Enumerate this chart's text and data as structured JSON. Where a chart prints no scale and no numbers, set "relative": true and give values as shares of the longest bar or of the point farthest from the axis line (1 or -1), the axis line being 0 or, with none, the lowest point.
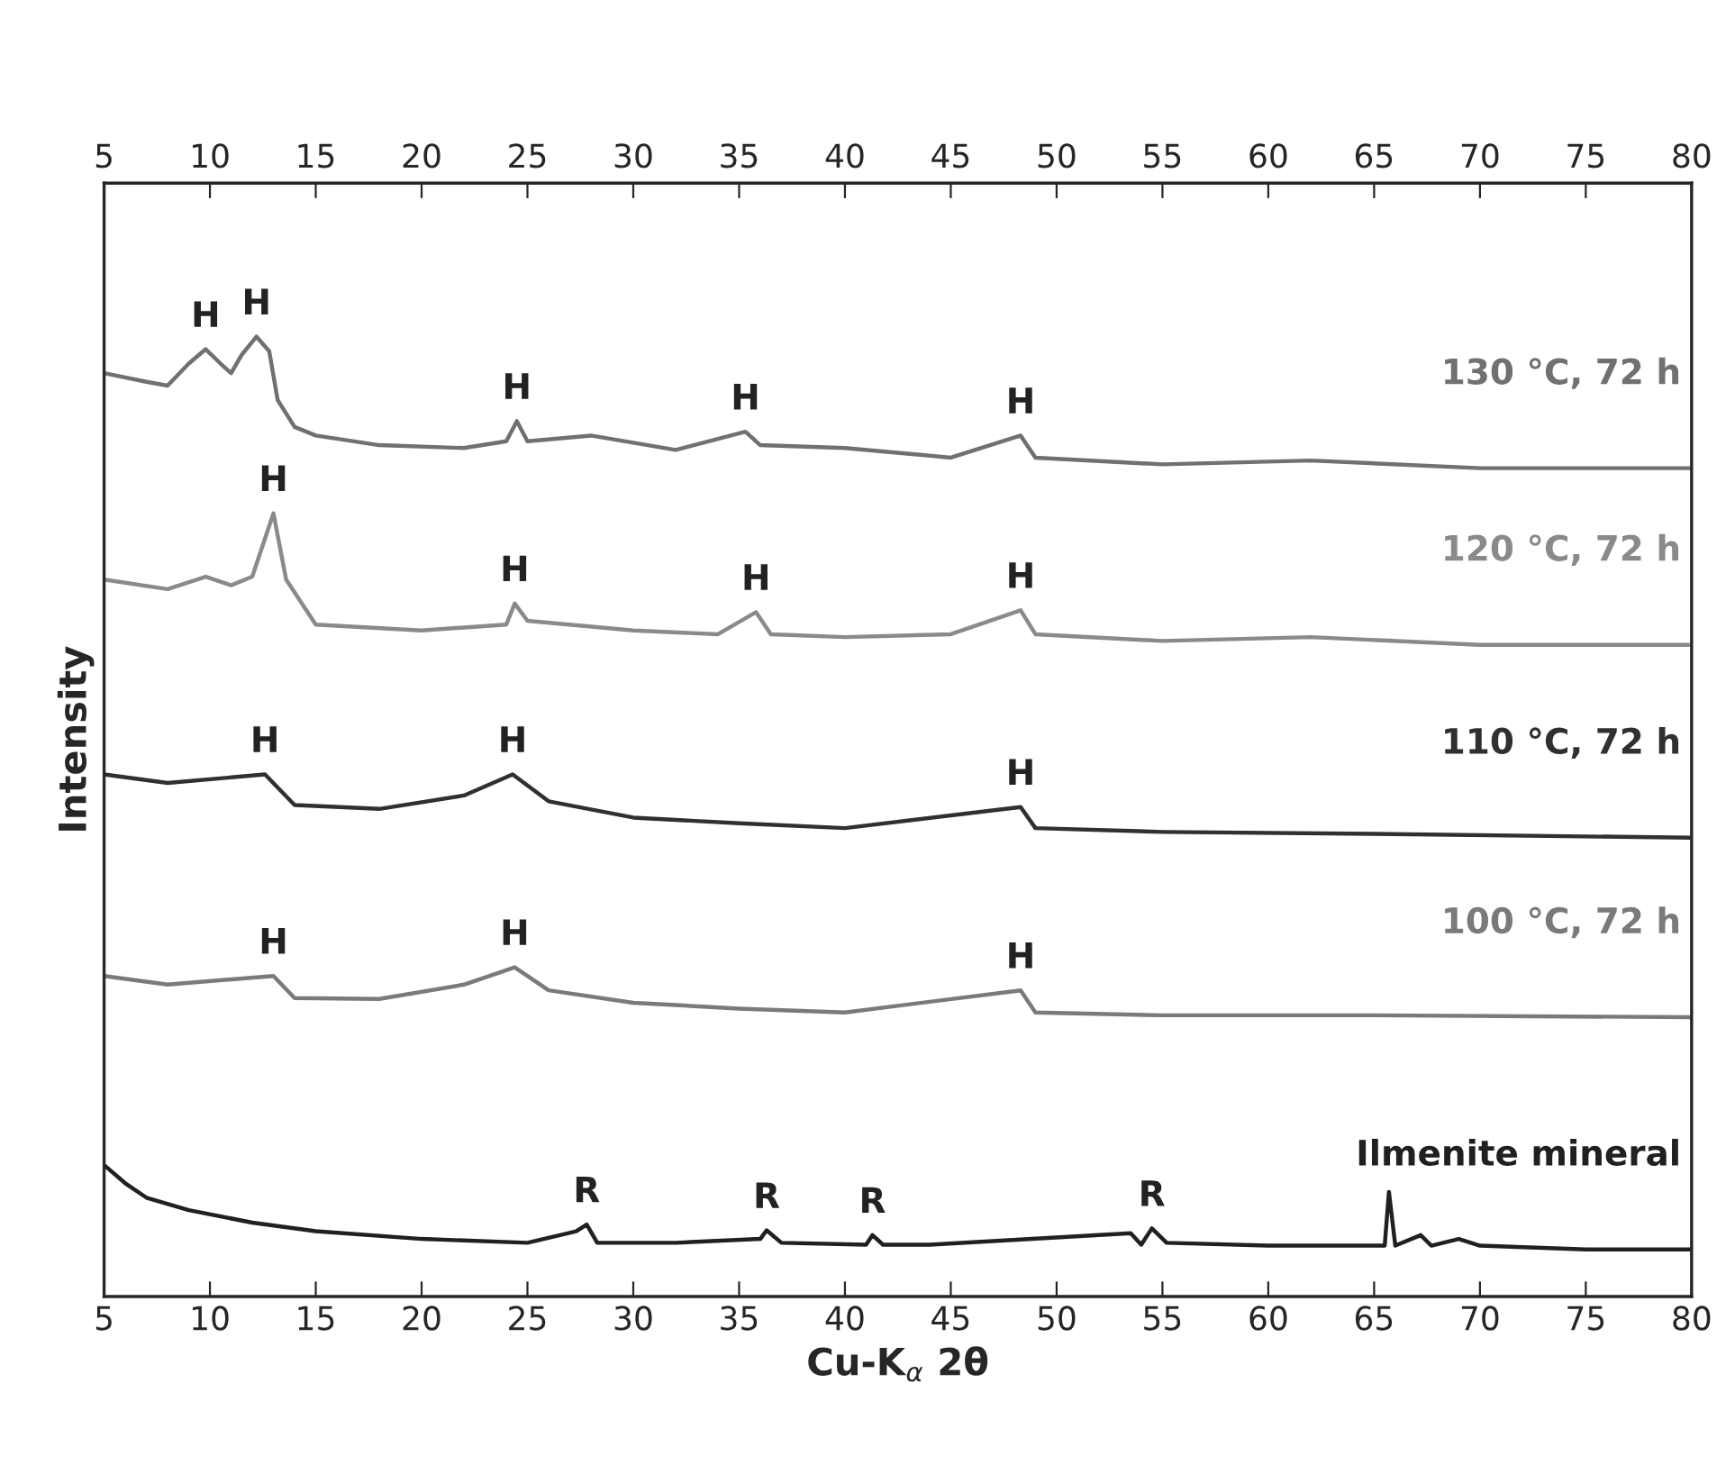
{
  "chart_data": {
    "type": "line",
    "relative": true,
    "xlabel": "Cu-K$_{α}$ 2θ",
    "ylabel": "Intensity",
    "xlim": [
      5,
      80
    ],
    "xticks": [
      5,
      10,
      15,
      20,
      25,
      30,
      35,
      40,
      45,
      50,
      55,
      60,
      65,
      70,
      75,
      80
    ],
    "x2lim": [
      5,
      80
    ],
    "x2ticks": [
      5,
      10,
      15,
      20,
      25,
      30,
      35,
      40,
      45,
      50,
      55,
      60,
      65,
      70,
      75,
      80
    ],
    "grid": false,
    "legend": false,
    "tick_labels": "x",
    "marker": "none",
    "line_style": "solid",
    "series": [
      {
        "name": "130 °C, 72 h",
        "color": "#707070",
        "x": [
          5,
          7,
          8,
          9,
          9.8,
          10.5,
          11,
          11.5,
          12.2,
          12.8,
          13.2,
          14,
          15,
          18,
          22,
          24,
          24.5,
          25,
          28,
          32,
          35.3,
          36,
          40,
          45,
          48.3,
          49,
          55,
          62,
          70,
          80
        ],
        "values": [
          0.962,
          0.953,
          0.949,
          0.972,
          0.987,
          0.972,
          0.962,
          0.981,
          1.0,
          0.985,
          0.934,
          0.906,
          0.897,
          0.887,
          0.884,
          0.891,
          0.912,
          0.891,
          0.897,
          0.882,
          0.901,
          0.887,
          0.884,
          0.874,
          0.897,
          0.874,
          0.867,
          0.871,
          0.863,
          0.863
        ]
      },
      {
        "name": "120 °C, 72 h",
        "color": "#8a8a8a",
        "x": [
          5,
          8,
          9.8,
          11,
          12,
          13,
          13.6,
          15,
          20,
          24,
          24.4,
          25,
          30,
          34,
          35.8,
          36.5,
          40,
          45,
          48.3,
          49,
          55,
          62,
          70,
          80
        ],
        "values": [
          0.747,
          0.737,
          0.75,
          0.741,
          0.75,
          0.816,
          0.747,
          0.7,
          0.694,
          0.7,
          0.722,
          0.704,
          0.694,
          0.69,
          0.713,
          0.69,
          0.687,
          0.69,
          0.715,
          0.69,
          0.683,
          0.687,
          0.679,
          0.679
        ]
      },
      {
        "name": "110 °C, 72 h",
        "color": "#303030",
        "x": [
          5,
          8,
          12.6,
          14,
          18,
          22,
          24.3,
          26,
          30,
          35,
          40,
          48.3,
          49,
          55,
          65,
          80
        ],
        "values": [
          0.544,
          0.535,
          0.544,
          0.512,
          0.508,
          0.522,
          0.544,
          0.516,
          0.499,
          0.493,
          0.488,
          0.51,
          0.488,
          0.484,
          0.482,
          0.478
        ]
      },
      {
        "name": "100 °C, 72 h",
        "color": "#7a7a7a",
        "x": [
          5,
          8,
          13,
          14,
          18,
          22,
          24.4,
          26,
          30,
          35,
          40,
          48.3,
          49,
          55,
          65,
          80
        ],
        "values": [
          0.334,
          0.325,
          0.334,
          0.311,
          0.31,
          0.325,
          0.343,
          0.319,
          0.306,
          0.3,
          0.296,
          0.319,
          0.296,
          0.293,
          0.293,
          0.291
        ]
      },
      {
        "name": "Ilmenite mineral",
        "color": "#202020",
        "x": [
          5,
          6,
          7,
          9,
          12,
          15,
          20,
          25,
          27.3,
          27.8,
          28.3,
          32,
          36,
          36.3,
          37,
          41,
          41.3,
          41.8,
          44,
          53.5,
          54,
          54.5,
          55.2,
          60,
          65.5,
          65.7,
          66,
          67.2,
          67.7,
          69,
          70,
          75,
          80
        ],
        "values": [
          0.137,
          0.118,
          0.103,
          0.09,
          0.077,
          0.068,
          0.06,
          0.056,
          0.068,
          0.075,
          0.056,
          0.056,
          0.06,
          0.069,
          0.056,
          0.054,
          0.064,
          0.054,
          0.054,
          0.066,
          0.054,
          0.071,
          0.056,
          0.053,
          0.053,
          0.109,
          0.053,
          0.064,
          0.053,
          0.06,
          0.053,
          0.049,
          0.049
        ]
      }
    ],
    "annotations": [
      {
        "text": "H",
        "x": 9.8,
        "y": 0.987
      },
      {
        "text": "H",
        "x": 12.2,
        "y": 1.0
      },
      {
        "text": "H",
        "x": 24.5,
        "y": 0.912
      },
      {
        "text": "H",
        "x": 35.3,
        "y": 0.901
      },
      {
        "text": "H",
        "x": 48.3,
        "y": 0.897
      },
      {
        "text": "H",
        "x": 13,
        "y": 0.816
      },
      {
        "text": "H",
        "x": 24.4,
        "y": 0.722
      },
      {
        "text": "H",
        "x": 35.8,
        "y": 0.713
      },
      {
        "text": "H",
        "x": 48.3,
        "y": 0.715
      },
      {
        "text": "H",
        "x": 12.6,
        "y": 0.544
      },
      {
        "text": "H",
        "x": 24.3,
        "y": 0.544
      },
      {
        "text": "H",
        "x": 48.3,
        "y": 0.51
      },
      {
        "text": "H",
        "x": 13,
        "y": 0.334
      },
      {
        "text": "H",
        "x": 24.4,
        "y": 0.343
      },
      {
        "text": "H",
        "x": 48.3,
        "y": 0.319
      },
      {
        "text": "R",
        "x": 27.8,
        "y": 0.075
      },
      {
        "text": "R",
        "x": 36.3,
        "y": 0.069
      },
      {
        "text": "R",
        "x": 41.3,
        "y": 0.064
      },
      {
        "text": "R",
        "x": 54.5,
        "y": 0.071
      }
    ]
  }
}
